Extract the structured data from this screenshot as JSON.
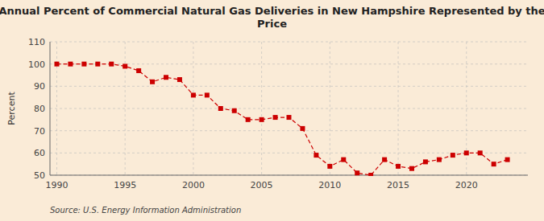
{
  "chart_data": {
    "type": "line",
    "title": "Annual Percent of Commercial Natural Gas Deliveries in New Hampshire Represented by the\nPrice",
    "y_label": "Percent",
    "annotations": [
      "Source: U.S. Energy Information Administration"
    ],
    "x": [
      1990,
      1991,
      1992,
      1993,
      1994,
      1995,
      1996,
      1997,
      1998,
      1999,
      2000,
      2001,
      2002,
      2003,
      2004,
      2005,
      2006,
      2007,
      2008,
      2009,
      2010,
      2011,
      2012,
      2013,
      2014,
      2015,
      2016,
      2017,
      2018,
      2019,
      2020,
      2021,
      2022,
      2023
    ],
    "values": [
      100,
      100,
      100,
      100,
      100,
      99,
      97,
      92,
      94,
      93,
      86,
      86,
      80,
      79,
      75,
      75,
      76,
      76,
      71,
      59,
      54,
      57,
      51,
      50,
      57,
      54,
      53,
      56,
      57,
      59,
      60,
      60,
      55,
      57
    ],
    "color": "#cc0000",
    "marker": "square",
    "line_style": "dashed",
    "xlim": [
      1989.5,
      2024.5
    ],
    "ylim": [
      50,
      110
    ],
    "xticks": [
      1990,
      1995,
      2000,
      2005,
      2010,
      2015,
      2020
    ],
    "yticks": [
      50,
      60,
      70,
      80,
      90,
      100,
      110
    ],
    "grid": true
  }
}
